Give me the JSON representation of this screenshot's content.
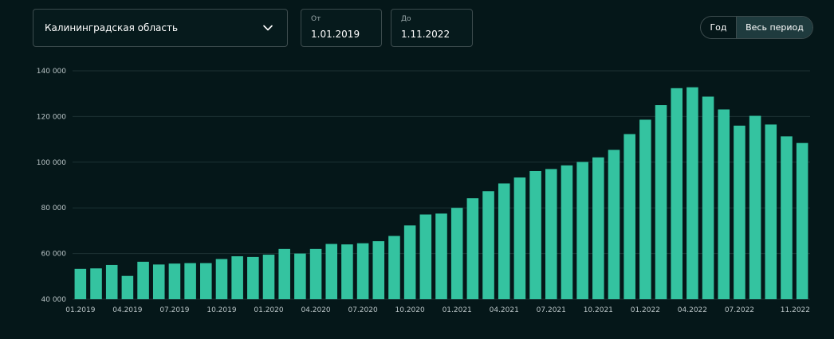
{
  "filters": {
    "region": {
      "value": "Калининградская область"
    },
    "date_from": {
      "caption": "От",
      "value": "1.01.2019"
    },
    "date_to": {
      "caption": "До",
      "value": "1.11.2022"
    }
  },
  "period_toggle": {
    "options": [
      "Год",
      "Весь период"
    ],
    "selected": "Весь период"
  },
  "colors": {
    "background": "#051719",
    "bar": "#34c3a0",
    "grid": "#1d3234",
    "tick_text": "#b9c4c6"
  },
  "chart_data": {
    "type": "bar",
    "ylim": [
      40000,
      140000
    ],
    "y_ticks": [
      40000,
      60000,
      80000,
      100000,
      120000,
      140000
    ],
    "y_tick_labels": [
      "40 000",
      "60 000",
      "80 000",
      "100 000",
      "120 000",
      "140 000"
    ],
    "x_tick_labels": [
      {
        "label": "01.2019",
        "index": 0
      },
      {
        "label": "04.2019",
        "index": 3
      },
      {
        "label": "07.2019",
        "index": 6
      },
      {
        "label": "10.2019",
        "index": 9
      },
      {
        "label": "01.2020",
        "index": 12
      },
      {
        "label": "04.2020",
        "index": 15
      },
      {
        "label": "07.2020",
        "index": 18
      },
      {
        "label": "10.2020",
        "index": 21
      },
      {
        "label": "01.2021",
        "index": 24
      },
      {
        "label": "04.2021",
        "index": 27
      },
      {
        "label": "07.2021",
        "index": 30
      },
      {
        "label": "10.2021",
        "index": 33
      },
      {
        "label": "01.2022",
        "index": 36
      },
      {
        "label": "04.2022",
        "index": 39
      },
      {
        "label": "07.2022",
        "index": 42
      },
      {
        "label": "11.2022",
        "index": 46
      }
    ],
    "categories": [
      "01.2019",
      "02.2019",
      "03.2019",
      "04.2019",
      "05.2019",
      "06.2019",
      "07.2019",
      "08.2019",
      "09.2019",
      "10.2019",
      "11.2019",
      "12.2019",
      "01.2020",
      "02.2020",
      "03.2020",
      "04.2020",
      "05.2020",
      "06.2020",
      "07.2020",
      "08.2020",
      "09.2020",
      "10.2020",
      "11.2020",
      "12.2020",
      "01.2021",
      "02.2021",
      "03.2021",
      "04.2021",
      "05.2021",
      "06.2021",
      "07.2021",
      "08.2021",
      "09.2021",
      "10.2021",
      "11.2021",
      "12.2021",
      "01.2022",
      "02.2022",
      "03.2022",
      "04.2022",
      "05.2022",
      "06.2022",
      "07.2022",
      "08.2022",
      "09.2022",
      "10.2022",
      "11.2022"
    ],
    "values": [
      53300,
      53500,
      55000,
      50200,
      56400,
      55200,
      55600,
      55800,
      55800,
      57600,
      58800,
      58500,
      59500,
      62000,
      60000,
      62000,
      64200,
      64000,
      64500,
      65400,
      67700,
      72300,
      77100,
      77500,
      80000,
      84200,
      87300,
      90700,
      93300,
      96100,
      97000,
      98600,
      100100,
      102100,
      105400,
      112300,
      118600,
      125000,
      132400,
      132800,
      128700,
      123100,
      116000,
      120300,
      116500,
      111300,
      108400
    ],
    "grid": true,
    "legend": "none"
  }
}
